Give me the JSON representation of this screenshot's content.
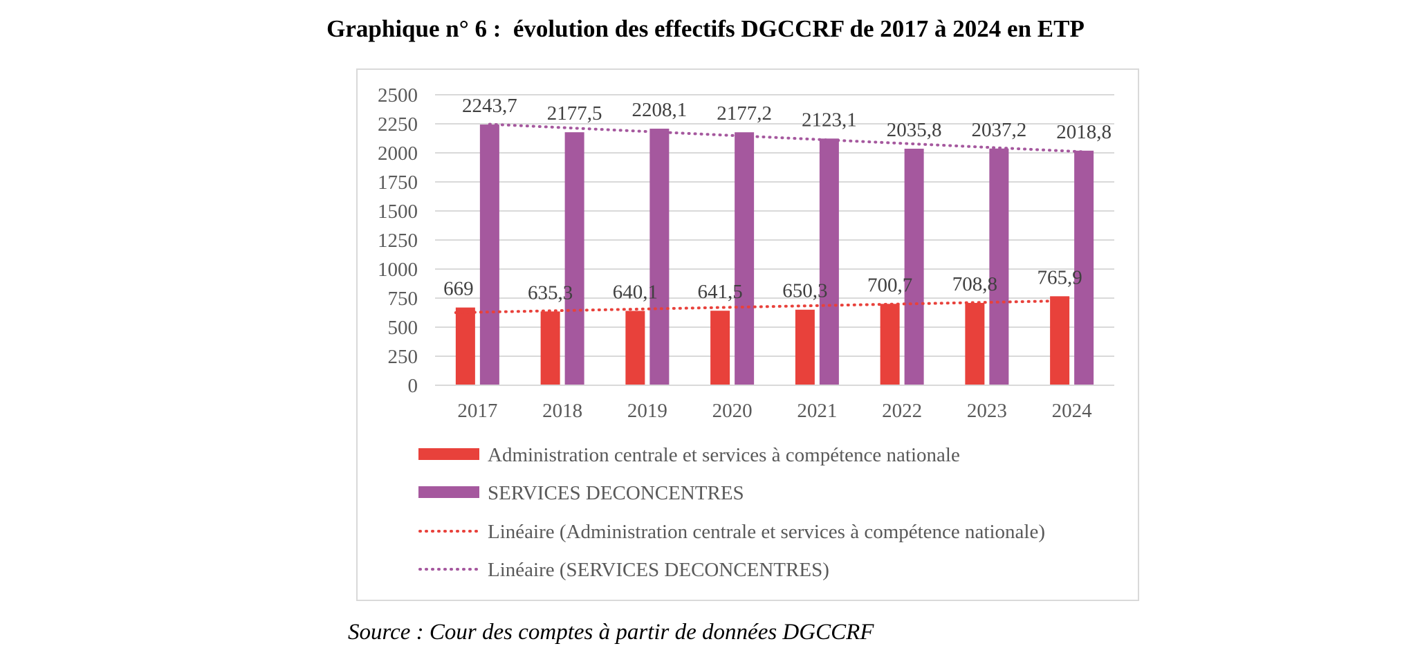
{
  "title": "Graphique n° 6 :  évolution des effectifs DGCCRF de 2017 à 2024 en ETP",
  "source": "Source : Cour des comptes à partir de données DGCCRF",
  "chart_data": {
    "type": "bar",
    "categories": [
      "2017",
      "2018",
      "2019",
      "2020",
      "2021",
      "2022",
      "2023",
      "2024"
    ],
    "series": [
      {
        "name": "Administration centrale et services à compétence nationale",
        "values": [
          669,
          635.3,
          640.1,
          641.5,
          650.3,
          700.7,
          708.8,
          765.9
        ],
        "labels": [
          "669",
          "635,3",
          "640,1",
          "641,5",
          "650,3",
          "700,7",
          "708,8",
          "765,9"
        ],
        "color": "#e8413b"
      },
      {
        "name": "SERVICES DECONCENTRES",
        "values": [
          2243.7,
          2177.5,
          2208.1,
          2177.2,
          2123.1,
          2035.8,
          2037.2,
          2018.8
        ],
        "labels": [
          "2243,7",
          "2177,5",
          "2208,1",
          "2177,2",
          "2123,1",
          "2035,8",
          "2037,2",
          "2018,8"
        ],
        "color": "#a5589e"
      }
    ],
    "trendlines": [
      {
        "name": "Linéaire (Administration centrale et services à compétence nationale)",
        "color": "#e8413b",
        "style": "dotted"
      },
      {
        "name": "Linéaire (SERVICES DECONCENTRES)",
        "color": "#a5589e",
        "style": "dotted"
      }
    ],
    "ylim": [
      0,
      2500
    ],
    "yticks": [
      "0",
      "250",
      "500",
      "750",
      "1000",
      "1250",
      "1500",
      "1750",
      "2000",
      "2250",
      "2500"
    ],
    "grid": true,
    "legend_position": "bottom",
    "axis_color": "#595959",
    "grid_color": "#d9d9d9"
  }
}
